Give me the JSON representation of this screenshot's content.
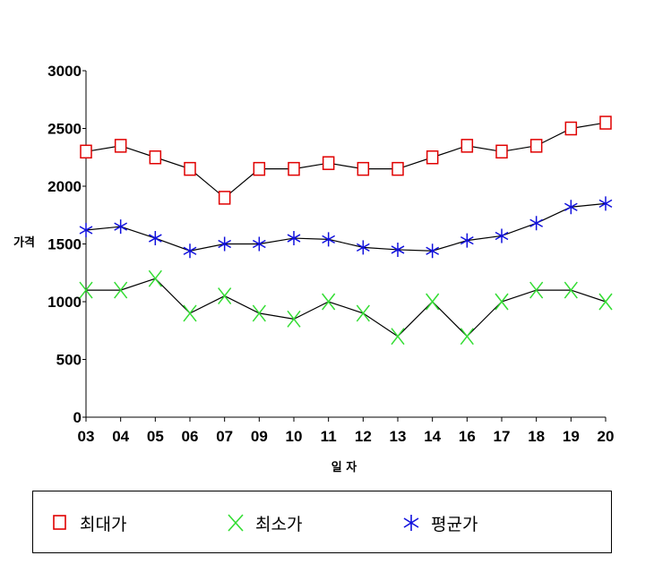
{
  "chart_data": {
    "type": "line",
    "title": "",
    "xlabel": "일 자",
    "ylabel": "가격",
    "categories": [
      "03",
      "04",
      "05",
      "06",
      "07",
      "09",
      "10",
      "11",
      "12",
      "13",
      "14",
      "16",
      "17",
      "18",
      "19",
      "20"
    ],
    "ylim": [
      0,
      3000
    ],
    "yticks": [
      0,
      500,
      1000,
      1500,
      2000,
      2500,
      3000
    ],
    "grid": false,
    "legend_position": "bottom",
    "series": [
      {
        "name": "최대가",
        "marker": "square",
        "marker_color": "#e00000",
        "line_color": "#000000",
        "values": [
          2300,
          2350,
          2250,
          2150,
          1900,
          2150,
          2150,
          2200,
          2150,
          2150,
          2250,
          2350,
          2300,
          2350,
          2500,
          2550
        ]
      },
      {
        "name": "최소가",
        "marker": "x",
        "marker_color": "#33dd33",
        "line_color": "#000000",
        "values": [
          1100,
          1100,
          1200,
          900,
          1050,
          900,
          850,
          1000,
          900,
          700,
          1000,
          700,
          1000,
          1100,
          1100,
          1000
        ]
      },
      {
        "name": "평균가",
        "marker": "asterisk",
        "marker_color": "#1010dd",
        "line_color": "#000000",
        "values": [
          1620,
          1650,
          1550,
          1440,
          1500,
          1500,
          1550,
          1540,
          1470,
          1450,
          1440,
          1530,
          1570,
          1680,
          1820,
          1850
        ]
      }
    ]
  }
}
